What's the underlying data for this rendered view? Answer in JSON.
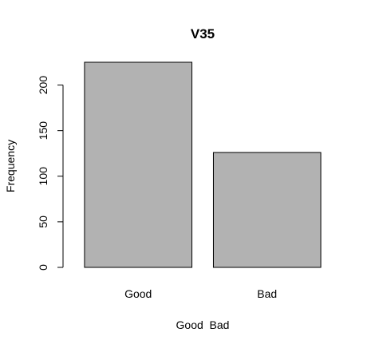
{
  "chart_data": {
    "type": "bar",
    "title": "V35",
    "xlabel": "Good  Bad",
    "ylabel": "Frequency",
    "categories": [
      "Good",
      "Bad"
    ],
    "values": [
      225,
      126
    ],
    "ylim": [
      0,
      225
    ],
    "yticks": [
      0,
      50,
      100,
      150,
      200
    ],
    "bar_color": "#b2b2b2",
    "grid": false,
    "legend": "none"
  }
}
